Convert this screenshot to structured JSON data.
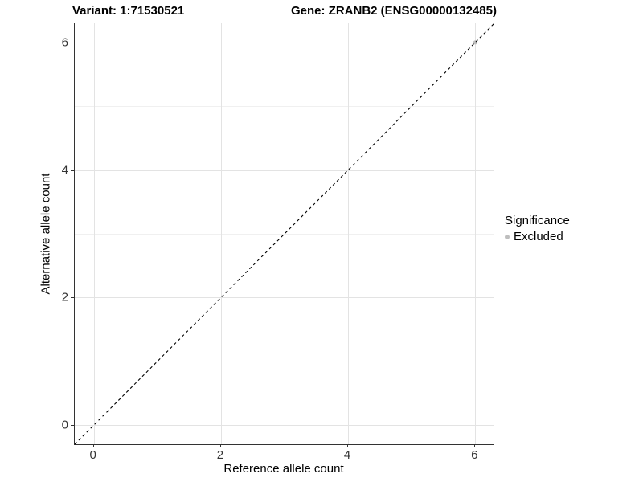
{
  "titles": {
    "variant": "Variant: 1:71530521",
    "gene": "Gene: ZRANB2 (ENSG00000132485)"
  },
  "axes": {
    "x_label": "Reference allele count",
    "y_label": "Alternative allele count"
  },
  "legend": {
    "title": "Significance",
    "items": [
      {
        "label": "Excluded",
        "color": "#BEBEBE"
      }
    ]
  },
  "colors": {
    "axis_line": "#333333",
    "grid_major": "#e3e3e3",
    "grid_minor": "#f0f0f0",
    "identity_line": "#000000",
    "point": "#BEBEBE"
  },
  "chart_data": {
    "type": "scatter",
    "title": "Variant: 1:71530521 / Gene: ZRANB2 (ENSG00000132485)",
    "xlabel": "Reference allele count",
    "ylabel": "Alternative allele count",
    "xlim": [
      -0.3,
      6.3
    ],
    "ylim": [
      -0.3,
      6.3
    ],
    "x_ticks": [
      0,
      2,
      4,
      6
    ],
    "y_ticks": [
      0,
      2,
      4,
      6
    ],
    "x_minor_ticks": [
      1,
      3,
      5
    ],
    "y_minor_ticks": [
      1,
      3,
      5
    ],
    "grid": "major+minor",
    "legend_position": "right",
    "reference_line": {
      "type": "identity",
      "style": "dashed",
      "color": "#000000"
    },
    "series": [
      {
        "name": "Excluded",
        "color": "#BEBEBE",
        "points": [
          [
            6,
            6
          ]
        ]
      }
    ]
  }
}
